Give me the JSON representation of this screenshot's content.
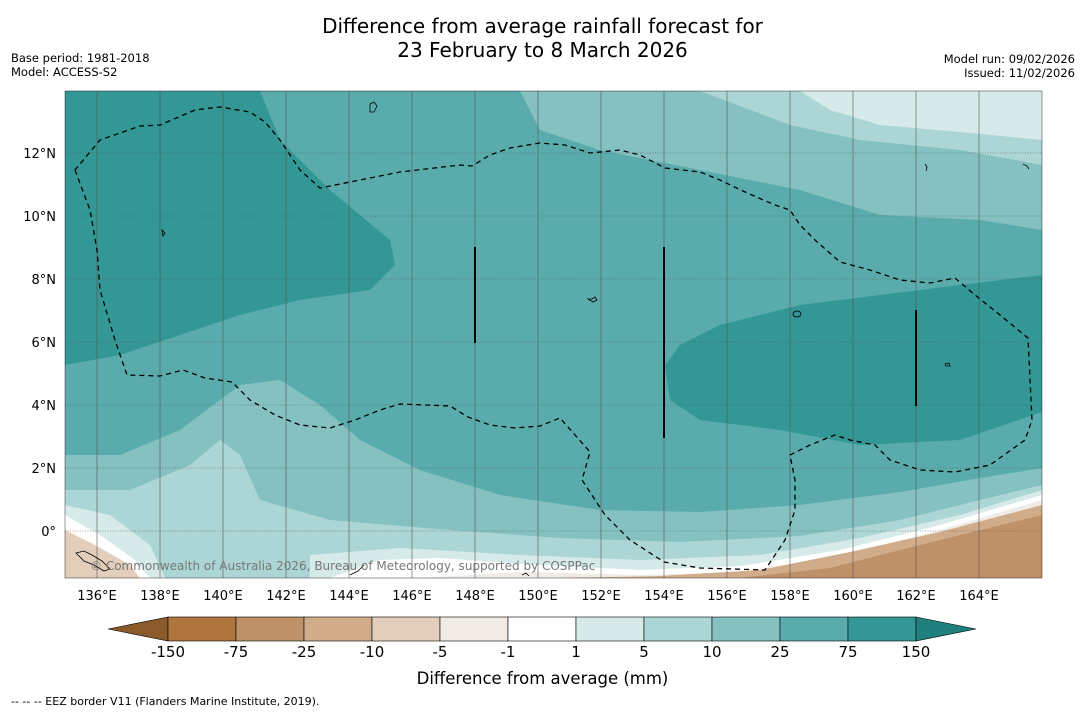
{
  "title": {
    "line1": "Difference from average rainfall forecast for",
    "line2": "23 February to 8 March 2026"
  },
  "meta_left": {
    "base_period": "Base period: 1981-2018",
    "model": "Model: ACCESS-S2"
  },
  "meta_right": {
    "model_run": "Model run: 09/02/2026",
    "issued": "Issued: 11/02/2026"
  },
  "map": {
    "lon_ticks": [
      "136°E",
      "138°E",
      "140°E",
      "142°E",
      "144°E",
      "146°E",
      "148°E",
      "150°E",
      "152°E",
      "154°E",
      "156°E",
      "158°E",
      "160°E",
      "162°E",
      "164°E"
    ],
    "lat_ticks": [
      "12°N",
      "10°N",
      "8°N",
      "6°N",
      "4°N",
      "2°N",
      "0°"
    ],
    "copyright": "© Commonwealth of Australia 2026, Bureau of Meteorology, supported by COSPPac"
  },
  "colorbar": {
    "ticks": [
      "-150",
      "-75",
      "-25",
      "-10",
      "-5",
      "-1",
      "1",
      "5",
      "10",
      "25",
      "75",
      "150"
    ],
    "colors": [
      "#8b5a2b",
      "#ae753f",
      "#bf9168",
      "#d0ac8a",
      "#e2cebb",
      "#f1ebe5",
      "#ffffff",
      "#d6eae9",
      "#acd6d5",
      "#84c1c0",
      "#5aacac",
      "#329795",
      "#1e7f7c"
    ],
    "label": "Difference from average (mm)"
  },
  "legend": "--  --  -- EEZ border V11 (Flanders Marine Institute, 2019)."
}
